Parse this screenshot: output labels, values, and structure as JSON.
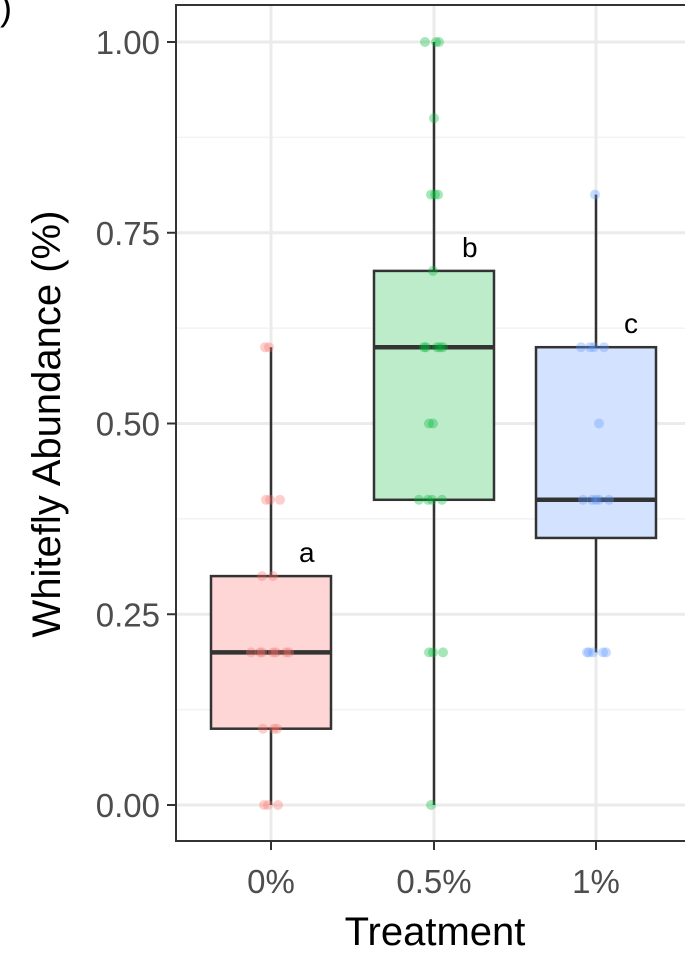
{
  "panel_label": ")",
  "chart_data": {
    "type": "box",
    "title": "",
    "xlabel": "Treatment",
    "ylabel": "Whitefly Abundance (%)",
    "ylim": [
      0,
      1.05
    ],
    "yticks": [
      "0.00",
      "0.25",
      "0.50",
      "0.75",
      "1.00"
    ],
    "ytick_values": [
      0,
      0.25,
      0.5,
      0.75,
      1.0
    ],
    "categories": [
      "0%",
      "0.5%",
      "1%"
    ],
    "grid": true,
    "legend": "none",
    "boxes": [
      {
        "category": "0%",
        "min": 0.0,
        "q1": 0.1,
        "median": 0.2,
        "q3": 0.3,
        "max": 0.6,
        "letter": "a",
        "fill": "#ffd6d6",
        "point_color": "#f8766d",
        "points": [
          0,
          0,
          0,
          0.1,
          0.1,
          0.1,
          0.2,
          0.2,
          0.2,
          0.2,
          0.2,
          0.2,
          0.2,
          0.3,
          0.3,
          0.4,
          0.4,
          0.4,
          0.6,
          0.6
        ]
      },
      {
        "category": "0.5%",
        "min": 0.0,
        "q1": 0.4,
        "median": 0.6,
        "q3": 0.7,
        "max": 1.0,
        "letter": "b",
        "fill": "#bdeccb",
        "point_color": "#00ba38",
        "points": [
          0,
          0.2,
          0.2,
          0.2,
          0.4,
          0.4,
          0.4,
          0.4,
          0.5,
          0.5,
          0.6,
          0.6,
          0.6,
          0.6,
          0.6,
          0.7,
          0.8,
          0.8,
          0.8,
          0.9,
          1.0,
          1.0,
          1.0
        ]
      },
      {
        "category": "1%",
        "min": 0.2,
        "q1": 0.35,
        "median": 0.4,
        "q3": 0.6,
        "max": 0.8,
        "letter": "c",
        "fill": "#d3e2ff",
        "point_color": "#619cff",
        "points": [
          0.2,
          0.2,
          0.2,
          0.2,
          0.2,
          0.4,
          0.4,
          0.4,
          0.4,
          0.4,
          0.5,
          0.6,
          0.6,
          0.6,
          0.6,
          0.8
        ]
      }
    ]
  }
}
